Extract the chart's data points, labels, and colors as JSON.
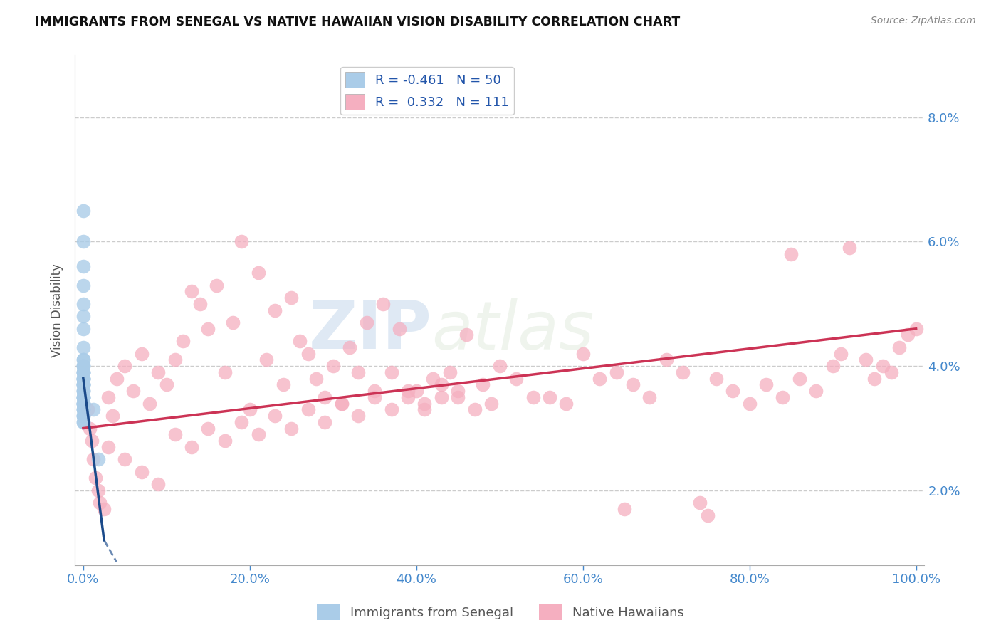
{
  "title": "IMMIGRANTS FROM SENEGAL VS NATIVE HAWAIIAN VISION DISABILITY CORRELATION CHART",
  "source_text": "Source: ZipAtlas.com",
  "ylabel": "Vision Disability",
  "x_min": -1.0,
  "x_max": 101.0,
  "y_min": 0.8,
  "y_max": 9.0,
  "y_ticks": [
    2.0,
    4.0,
    6.0,
    8.0
  ],
  "x_ticks": [
    0.0,
    20.0,
    40.0,
    60.0,
    80.0,
    100.0
  ],
  "legend_r1": "R = -0.461",
  "legend_n1": "N = 50",
  "legend_r2": "R =  0.332",
  "legend_n2": "N = 111",
  "legend_label1": "Immigrants from Senegal",
  "legend_label2": "Native Hawaiians",
  "color_blue": "#aacce8",
  "color_pink": "#f5afc0",
  "color_blue_line": "#1a4a8a",
  "color_pink_line": "#cc3355",
  "background_color": "#ffffff",
  "grid_color": "#cccccc",
  "blue_points_x": [
    0.02,
    0.03,
    0.02,
    0.04,
    0.03,
    0.02,
    0.05,
    0.03,
    0.02,
    0.04,
    0.03,
    0.02,
    0.04,
    0.03,
    0.02,
    0.05,
    0.03,
    0.02,
    0.04,
    0.03,
    0.02,
    0.04,
    0.03,
    0.02,
    0.05,
    0.03,
    0.02,
    0.04,
    0.03,
    0.02,
    0.04,
    0.03,
    0.02,
    0.05,
    0.03,
    0.02,
    0.04,
    0.03,
    0.02,
    0.05,
    0.03,
    0.02,
    0.04,
    0.03,
    0.02,
    0.05,
    0.03,
    0.02,
    1.2,
    1.8
  ],
  "blue_points_y": [
    3.8,
    4.1,
    3.5,
    3.9,
    3.6,
    3.3,
    4.0,
    3.7,
    3.4,
    3.8,
    3.5,
    3.2,
    3.7,
    3.4,
    3.1,
    3.9,
    3.6,
    3.3,
    3.8,
    3.5,
    3.2,
    3.7,
    3.4,
    3.1,
    4.0,
    3.7,
    3.4,
    3.9,
    3.6,
    3.3,
    3.8,
    3.5,
    3.2,
    4.1,
    3.8,
    3.5,
    4.0,
    3.7,
    3.4,
    3.9,
    4.3,
    4.6,
    4.8,
    5.0,
    5.3,
    5.6,
    6.0,
    6.5,
    3.3,
    2.5
  ],
  "pink_points_x": [
    0.5,
    0.8,
    1.0,
    1.2,
    1.5,
    1.8,
    2.0,
    2.5,
    3.0,
    3.5,
    4.0,
    5.0,
    6.0,
    7.0,
    8.0,
    9.0,
    10.0,
    11.0,
    12.0,
    13.0,
    14.0,
    15.0,
    16.0,
    17.0,
    18.0,
    19.0,
    20.0,
    21.0,
    22.0,
    23.0,
    24.0,
    25.0,
    26.0,
    27.0,
    28.0,
    29.0,
    30.0,
    31.0,
    32.0,
    33.0,
    34.0,
    35.0,
    36.0,
    37.0,
    38.0,
    39.0,
    40.0,
    41.0,
    42.0,
    43.0,
    44.0,
    45.0,
    46.0,
    47.0,
    48.0,
    49.0,
    50.0,
    52.0,
    54.0,
    56.0,
    58.0,
    60.0,
    62.0,
    64.0,
    65.0,
    66.0,
    68.0,
    70.0,
    72.0,
    74.0,
    75.0,
    76.0,
    78.0,
    80.0,
    82.0,
    84.0,
    85.0,
    86.0,
    88.0,
    90.0,
    91.0,
    92.0,
    94.0,
    95.0,
    96.0,
    97.0,
    98.0,
    99.0,
    100.0,
    3.0,
    5.0,
    7.0,
    9.0,
    11.0,
    13.0,
    15.0,
    17.0,
    19.0,
    21.0,
    23.0,
    25.0,
    27.0,
    29.0,
    31.0,
    33.0,
    35.0,
    37.0,
    39.0,
    41.0,
    43.0,
    45.0
  ],
  "pink_points_y": [
    3.3,
    3.0,
    2.8,
    2.5,
    2.2,
    2.0,
    1.8,
    1.7,
    3.5,
    3.2,
    3.8,
    4.0,
    3.6,
    4.2,
    3.4,
    3.9,
    3.7,
    4.1,
    4.4,
    5.2,
    5.0,
    4.6,
    5.3,
    3.9,
    4.7,
    6.0,
    3.3,
    5.5,
    4.1,
    4.9,
    3.7,
    5.1,
    4.4,
    4.2,
    3.8,
    3.5,
    4.0,
    3.4,
    4.3,
    3.9,
    4.7,
    3.6,
    5.0,
    3.9,
    4.6,
    3.5,
    3.6,
    3.3,
    3.8,
    3.5,
    3.9,
    3.6,
    4.5,
    3.3,
    3.7,
    3.4,
    4.0,
    3.8,
    3.5,
    3.5,
    3.4,
    4.2,
    3.8,
    3.9,
    1.7,
    3.7,
    3.5,
    4.1,
    3.9,
    1.8,
    1.6,
    3.8,
    3.6,
    3.4,
    3.7,
    3.5,
    5.8,
    3.8,
    3.6,
    4.0,
    4.2,
    5.9,
    4.1,
    3.8,
    4.0,
    3.9,
    4.3,
    4.5,
    4.6,
    2.7,
    2.5,
    2.3,
    2.1,
    2.9,
    2.7,
    3.0,
    2.8,
    3.1,
    2.9,
    3.2,
    3.0,
    3.3,
    3.1,
    3.4,
    3.2,
    3.5,
    3.3,
    3.6,
    3.4,
    3.7,
    3.5
  ],
  "blue_line_x0": 0.0,
  "blue_line_y0": 3.8,
  "blue_line_x1": 2.5,
  "blue_line_y1": 1.2,
  "blue_dash_x0": 2.5,
  "blue_dash_y0": 1.2,
  "blue_dash_x1": 4.0,
  "blue_dash_y1": 0.85,
  "pink_line_x0": 0.0,
  "pink_line_y0": 3.0,
  "pink_line_x1": 100.0,
  "pink_line_y1": 4.6,
  "watermark_zip": "ZIP",
  "watermark_atlas": "atlas"
}
